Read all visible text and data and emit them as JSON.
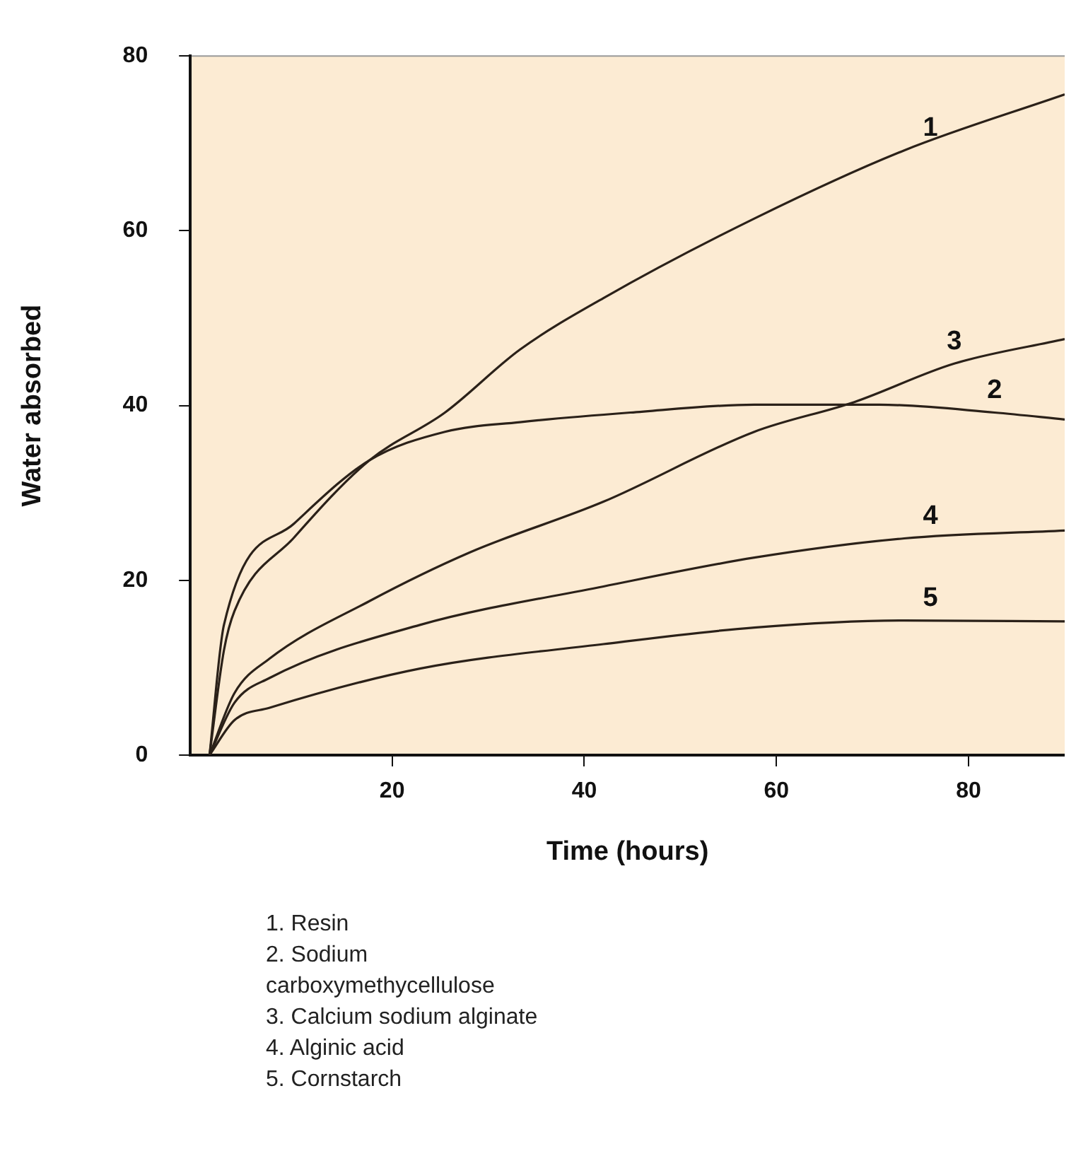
{
  "chart_data": {
    "type": "line",
    "xlabel": "Time (hours)",
    "ylabel": "Water absorbed",
    "xlim": [
      -1,
      90
    ],
    "ylim": [
      0,
      80
    ],
    "xticks": [
      20,
      40,
      60,
      80
    ],
    "yticks": [
      0,
      20,
      40,
      60,
      80
    ],
    "grid": false,
    "legend": false,
    "marker": "none",
    "line_style": "solid",
    "series": [
      {
        "name": "1",
        "color": "#2b2119",
        "x": [
          1,
          2.5,
          3.6,
          9.8,
          17.6,
          25.5,
          33.3,
          42,
          57.7,
          73.3,
          90
        ],
        "values": [
          0,
          12,
          16.5,
          24.9,
          33.7,
          39.2,
          46.4,
          52.3,
          61.4,
          69.2,
          75.6
        ]
      },
      {
        "name": "2",
        "color": "#2b2119",
        "x": [
          1,
          2.5,
          9.8,
          17.6,
          25.5,
          33.3,
          44.8,
          57.7,
          70.7,
          82.7,
          90
        ],
        "values": [
          0,
          14.9,
          26.5,
          33.7,
          37,
          38.1,
          39.2,
          40.1,
          40.1,
          39.2,
          38.4
        ]
      },
      {
        "name": "3",
        "color": "#2b2119",
        "x": [
          1,
          3.6,
          7.2,
          17.6,
          28.1,
          42,
          57.7,
          68.1,
          78.5,
          90
        ],
        "values": [
          0,
          7.1,
          11,
          17.6,
          23.2,
          29,
          37,
          40.4,
          44.8,
          47.6
        ]
      },
      {
        "name": "4",
        "color": "#2b2119",
        "x": [
          1,
          3.6,
          7.2,
          22.9,
          42,
          57.7,
          73.3,
          90
        ],
        "values": [
          0,
          6,
          8.8,
          14.9,
          19.3,
          22.6,
          24.8,
          25.7
        ]
      },
      {
        "name": "5",
        "color": "#2b2119",
        "x": [
          1,
          3.6,
          7.2,
          22.9,
          42,
          57.7,
          73.3,
          90
        ],
        "values": [
          0,
          4,
          5.4,
          9.9,
          12.7,
          14.6,
          15.4,
          15.3
        ]
      }
    ],
    "annotations": [
      "1. Resin",
      "2. Sodium carboxymethycellulose",
      "3. Calcium sodium alginate",
      "4. Alginic acid",
      "5. Cornstarch"
    ]
  }
}
